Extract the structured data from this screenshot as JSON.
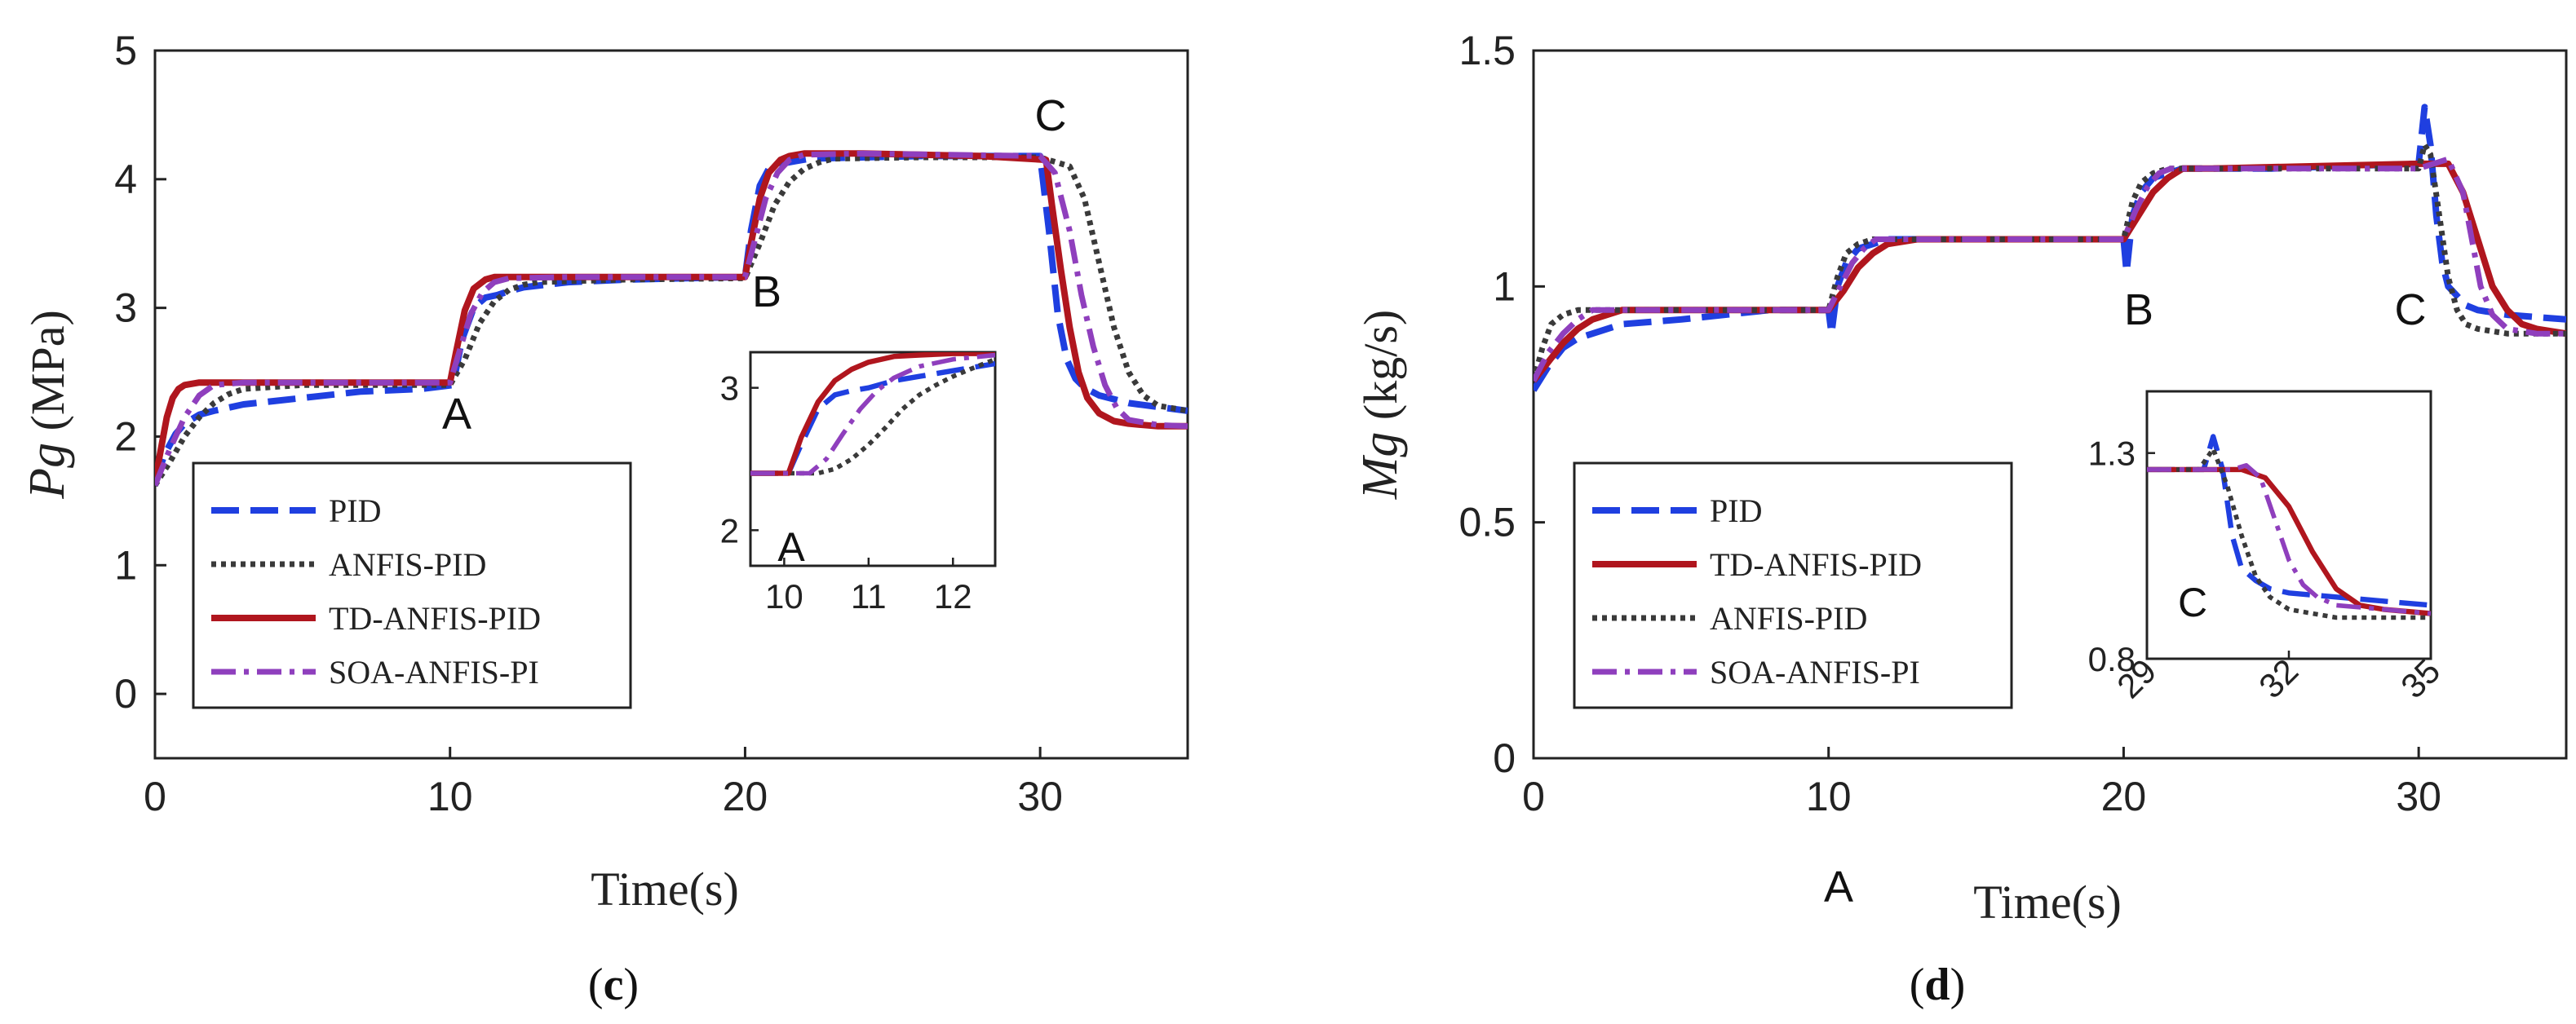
{
  "colors": {
    "PID": "#1f3fe0",
    "ANFIS-PID": "#3a3a3a",
    "TD-ANFIS-PID": "#b0161e",
    "SOA-ANFIS-PI": "#8f3fbd"
  },
  "chart_data": [
    {
      "type": "line",
      "panel": "c",
      "caption_open": "(",
      "caption_letter": "c",
      "caption_close": ")",
      "xlabel": "Time(s)",
      "ylabel_var": "Pg",
      "ylabel_unit": "(MPa)",
      "xlim": [
        0,
        35
      ],
      "ylim": [
        -0.5,
        5
      ],
      "xticks": [
        "0",
        "10",
        "20",
        "30"
      ],
      "yticks": [
        "0",
        "1",
        "2",
        "3",
        "4",
        "5"
      ],
      "annotations": [
        "A",
        "B",
        "C"
      ],
      "legend": [
        "PID",
        "ANFIS-PID",
        "TD-ANFIS-PID",
        "SOA-ANFIS-PI"
      ],
      "series": [
        {
          "name": "PID",
          "style": "dashed",
          "x": [
            0,
            0.3,
            0.7,
            1,
            1.5,
            2,
            3,
            5,
            7,
            9,
            10.1,
            10.4,
            10.8,
            11.2,
            11.6,
            12,
            12.5,
            14,
            16,
            18,
            20,
            20.2,
            20.5,
            20.8,
            21.2,
            21.7,
            22.2,
            24,
            26,
            28,
            30,
            30.3,
            30.6,
            30.9,
            31.2,
            31.5,
            32,
            33,
            35
          ],
          "y": [
            1.62,
            1.85,
            2.02,
            2.1,
            2.17,
            2.2,
            2.25,
            2.3,
            2.35,
            2.37,
            2.4,
            2.75,
            3.0,
            3.08,
            3.1,
            3.13,
            3.16,
            3.2,
            3.22,
            3.23,
            3.24,
            3.6,
            3.95,
            4.08,
            4.12,
            4.14,
            4.16,
            4.17,
            4.18,
            4.18,
            4.18,
            3.6,
            2.95,
            2.6,
            2.45,
            2.38,
            2.32,
            2.26,
            2.2
          ]
        },
        {
          "name": "ANFIS-PID",
          "style": "dotted",
          "x": [
            0,
            0.5,
            1,
            1.5,
            2,
            2.5,
            3,
            5,
            8,
            10,
            10.5,
            11,
            11.5,
            12,
            12.5,
            13,
            16,
            20,
            20.5,
            21,
            21.5,
            22,
            22.5,
            23,
            26,
            30,
            31,
            31.5,
            32,
            32.5,
            33,
            33.5,
            34,
            35
          ],
          "y": [
            1.62,
            1.8,
            2.0,
            2.15,
            2.26,
            2.33,
            2.37,
            2.4,
            2.4,
            2.4,
            2.6,
            2.88,
            3.05,
            3.14,
            3.18,
            3.2,
            3.22,
            3.23,
            3.5,
            3.8,
            3.98,
            4.08,
            4.13,
            4.16,
            4.17,
            4.17,
            4.1,
            3.85,
            3.35,
            2.85,
            2.5,
            2.32,
            2.24,
            2.2
          ]
        },
        {
          "name": "TD-ANFIS-PID",
          "style": "solid",
          "x": [
            0,
            0.2,
            0.4,
            0.6,
            0.8,
            1,
            1.5,
            2,
            5,
            8,
            10,
            10.2,
            10.5,
            10.8,
            11.2,
            11.5,
            12,
            14,
            18,
            20,
            20.2,
            20.5,
            20.8,
            21.2,
            21.5,
            22,
            24,
            28,
            30.2,
            30.4,
            30.7,
            31,
            31.3,
            31.6,
            32,
            32.5,
            33,
            34,
            35
          ],
          "y": [
            1.65,
            1.9,
            2.15,
            2.3,
            2.37,
            2.4,
            2.42,
            2.42,
            2.42,
            2.42,
            2.42,
            2.65,
            2.98,
            3.15,
            3.22,
            3.24,
            3.24,
            3.24,
            3.24,
            3.24,
            3.5,
            3.85,
            4.05,
            4.15,
            4.18,
            4.2,
            4.2,
            4.18,
            4.15,
            3.8,
            3.3,
            2.85,
            2.5,
            2.3,
            2.18,
            2.12,
            2.1,
            2.08,
            2.08
          ]
        },
        {
          "name": "SOA-ANFIS-PI",
          "style": "dashdot",
          "x": [
            0,
            0.5,
            1,
            1.5,
            2,
            3,
            6,
            10,
            10.3,
            10.7,
            11.1,
            11.5,
            12,
            14,
            20,
            20.3,
            20.7,
            21.1,
            21.5,
            22,
            24,
            30,
            30.5,
            31,
            31.4,
            31.8,
            32.2,
            32.6,
            33,
            34,
            35
          ],
          "y": [
            1.62,
            1.9,
            2.15,
            2.32,
            2.4,
            2.42,
            2.42,
            2.42,
            2.65,
            2.95,
            3.12,
            3.2,
            3.23,
            3.24,
            3.24,
            3.5,
            3.85,
            4.05,
            4.15,
            4.19,
            4.2,
            4.18,
            4.05,
            3.6,
            3.1,
            2.7,
            2.4,
            2.22,
            2.13,
            2.09,
            2.08
          ]
        }
      ],
      "inset": {
        "xlim": [
          9.6,
          12.5
        ],
        "ylim": [
          1.75,
          3.25
        ],
        "xticks": [
          "10",
          "11",
          "12"
        ],
        "yticks": [
          "2",
          "3"
        ],
        "annotation": "A",
        "series": [
          {
            "name": "PID",
            "x": [
              9.6,
              10.05,
              10.2,
              10.4,
              10.6,
              10.8,
              11,
              11.3,
              11.6,
              12,
              12.5
            ],
            "y": [
              2.4,
              2.4,
              2.6,
              2.85,
              2.95,
              2.98,
              3.0,
              3.05,
              3.08,
              3.12,
              3.17
            ]
          },
          {
            "name": "ANFIS-PID",
            "x": [
              9.6,
              10.4,
              10.6,
              10.8,
              11,
              11.2,
              11.4,
              11.6,
              11.8,
              12,
              12.2,
              12.5
            ],
            "y": [
              2.4,
              2.4,
              2.43,
              2.5,
              2.6,
              2.72,
              2.85,
              2.95,
              3.02,
              3.08,
              3.13,
              3.2
            ]
          },
          {
            "name": "TD-ANFIS-PID",
            "x": [
              9.6,
              10.05,
              10.2,
              10.4,
              10.6,
              10.8,
              11,
              11.3,
              11.6,
              12,
              12.5
            ],
            "y": [
              2.4,
              2.4,
              2.65,
              2.9,
              3.05,
              3.13,
              3.18,
              3.22,
              3.23,
              3.24,
              3.24
            ]
          },
          {
            "name": "SOA-ANFIS-PI",
            "x": [
              9.6,
              10.3,
              10.5,
              10.7,
              10.9,
              11.1,
              11.3,
              11.6,
              12,
              12.5
            ],
            "y": [
              2.4,
              2.4,
              2.5,
              2.68,
              2.85,
              2.98,
              3.07,
              3.15,
              3.2,
              3.23
            ]
          }
        ]
      }
    },
    {
      "type": "line",
      "panel": "d",
      "caption_open": "(",
      "caption_letter": "d",
      "caption_close": ")",
      "xlabel": "Time(s)",
      "ylabel_var": "Mg",
      "ylabel_unit": "(kg/s)",
      "xlim": [
        0,
        35
      ],
      "ylim": [
        0,
        1.5
      ],
      "xticks": [
        "0",
        "10",
        "20",
        "30"
      ],
      "yticks": [
        "0",
        "0.5",
        "1",
        "1.5"
      ],
      "annotations": [
        "A",
        "B",
        "C"
      ],
      "legend": [
        "PID",
        "TD-ANFIS-PID",
        "ANFIS-PID",
        "SOA-ANFIS-PI"
      ],
      "series": [
        {
          "name": "PID",
          "style": "dashed",
          "x": [
            0,
            0.5,
            1,
            1.5,
            2,
            3,
            5,
            8,
            10,
            10.1,
            10.3,
            10.6,
            11,
            11.5,
            12,
            14,
            18,
            20,
            20.1,
            20.3,
            20.6,
            21,
            21.5,
            22,
            25,
            30,
            30.2,
            30.4,
            30.6,
            30.8,
            31,
            31.3,
            31.6,
            32,
            33,
            35
          ],
          "y": [
            0.78,
            0.83,
            0.87,
            0.89,
            0.9,
            0.92,
            0.93,
            0.95,
            0.95,
            0.9,
            1.0,
            1.05,
            1.08,
            1.09,
            1.1,
            1.1,
            1.1,
            1.1,
            1.03,
            1.15,
            1.2,
            1.23,
            1.24,
            1.25,
            1.25,
            1.26,
            1.38,
            1.3,
            1.15,
            1.05,
            1.0,
            0.98,
            0.96,
            0.95,
            0.94,
            0.93
          ]
        },
        {
          "name": "TD-ANFIS-PID",
          "style": "dotted",
          "x": [
            0,
            0.5,
            1,
            1.5,
            2,
            3,
            5,
            10,
            10.5,
            11,
            11.5,
            12,
            13,
            20,
            20.5,
            21,
            21.5,
            22,
            23,
            30,
            31,
            31.5,
            32,
            32.5,
            33,
            33.5,
            34,
            35
          ],
          "y": [
            0.8,
            0.84,
            0.88,
            0.91,
            0.93,
            0.95,
            0.95,
            0.95,
            0.99,
            1.04,
            1.07,
            1.09,
            1.1,
            1.1,
            1.15,
            1.2,
            1.23,
            1.25,
            1.25,
            1.26,
            1.26,
            1.2,
            1.1,
            1.0,
            0.95,
            0.92,
            0.91,
            0.9
          ]
        },
        {
          "name": "ANFIS-PID",
          "style": "solid",
          "x": [
            0,
            0.3,
            0.6,
            1,
            1.5,
            2,
            5,
            10,
            10.3,
            10.6,
            11,
            11.5,
            12,
            20,
            20.3,
            20.6,
            21,
            21.5,
            22,
            30,
            30.2,
            30.4,
            30.7,
            31,
            31.3,
            31.6,
            32,
            33,
            35
          ],
          "y": [
            0.8,
            0.87,
            0.92,
            0.94,
            0.95,
            0.95,
            0.95,
            0.95,
            1.02,
            1.07,
            1.09,
            1.1,
            1.1,
            1.1,
            1.18,
            1.22,
            1.24,
            1.25,
            1.25,
            1.25,
            1.3,
            1.28,
            1.15,
            1.02,
            0.95,
            0.92,
            0.91,
            0.9,
            0.9
          ]
        },
        {
          "name": "SOA-ANFIS-PI",
          "style": "dashdot",
          "x": [
            0,
            0.5,
            1,
            1.5,
            2,
            3,
            10,
            10.4,
            10.8,
            11.2,
            11.6,
            12,
            20,
            20.4,
            20.8,
            21.2,
            21.6,
            22,
            30,
            30.5,
            31,
            31.5,
            31.8,
            32.1,
            32.5,
            33,
            34,
            35
          ],
          "y": [
            0.8,
            0.86,
            0.9,
            0.93,
            0.95,
            0.95,
            0.95,
            1.0,
            1.05,
            1.08,
            1.1,
            1.1,
            1.1,
            1.16,
            1.21,
            1.24,
            1.25,
            1.25,
            1.25,
            1.26,
            1.27,
            1.2,
            1.1,
            1.0,
            0.94,
            0.91,
            0.9,
            0.9
          ]
        }
      ],
      "inset": {
        "xlim": [
          29,
          35
        ],
        "ylim": [
          0.8,
          1.45
        ],
        "xticks": [
          "29",
          "32",
          "35"
        ],
        "yticks": [
          "0.8",
          "1.3"
        ],
        "annotation": "C",
        "series": [
          {
            "name": "PID",
            "x": [
              29,
              30.2,
              30.4,
              30.6,
              30.8,
              31,
              31.3,
              31.6,
              32,
              33,
              35
            ],
            "y": [
              1.26,
              1.26,
              1.34,
              1.26,
              1.1,
              1.02,
              0.99,
              0.97,
              0.96,
              0.95,
              0.93
            ]
          },
          {
            "name": "TD-ANFIS-PID",
            "x": [
              29,
              31,
              31.5,
              32,
              32.5,
              33,
              33.5,
              34,
              35
            ],
            "y": [
              1.26,
              1.26,
              1.24,
              1.17,
              1.06,
              0.97,
              0.93,
              0.92,
              0.91
            ]
          },
          {
            "name": "ANFIS-PID",
            "x": [
              29,
              30.1,
              30.4,
              30.7,
              31,
              31.3,
              31.6,
              32,
              32.5,
              33,
              35
            ],
            "y": [
              1.26,
              1.26,
              1.31,
              1.22,
              1.1,
              1.0,
              0.95,
              0.92,
              0.91,
              0.9,
              0.9
            ]
          },
          {
            "name": "SOA-ANFIS-PI",
            "x": [
              29,
              30.8,
              31.1,
              31.4,
              31.7,
              32,
              32.3,
              32.6,
              33,
              34,
              35
            ],
            "y": [
              1.26,
              1.26,
              1.27,
              1.24,
              1.14,
              1.04,
              0.98,
              0.95,
              0.93,
              0.92,
              0.91
            ]
          }
        ]
      }
    }
  ]
}
